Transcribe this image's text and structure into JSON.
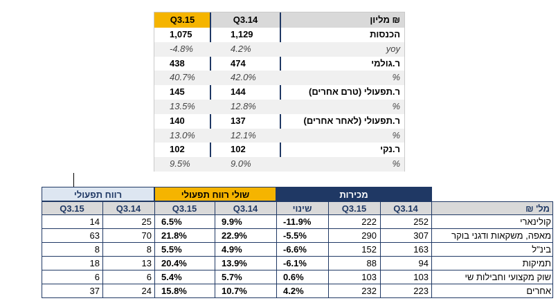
{
  "top_table": {
    "header": {
      "q315": "Q3.15",
      "q314": "Q3.14",
      "label": "מליון ₪"
    },
    "rows": [
      {
        "label": "הכנסות",
        "q314": "1,129",
        "q315": "1,075",
        "style": "bold"
      },
      {
        "label": "yoy",
        "q314": "4.2%",
        "q315": "-4.8%",
        "style": "pct"
      },
      {
        "label": "ר.גולמי",
        "q314": "474",
        "q315": "438",
        "style": "bold"
      },
      {
        "label": "%",
        "q314": "42.0%",
        "q315": "40.7%",
        "style": "pct"
      },
      {
        "label": "ר.תפעולי (טרם אחרים)",
        "q314": "144",
        "q315": "145",
        "style": "bold"
      },
      {
        "label": "%",
        "q314": "12.8%",
        "q315": "13.5%",
        "style": "pct"
      },
      {
        "label": "ר.תפעולי (לאחר אחרים)",
        "q314": "137",
        "q315": "140",
        "style": "bold"
      },
      {
        "label": "%",
        "q314": "12.1%",
        "q315": "13.0%",
        "style": "pct"
      },
      {
        "label": "ר.נקי",
        "q314": "102",
        "q315": "102",
        "style": "bold"
      },
      {
        "label": "%",
        "q314": "9.0%",
        "q315": "9.5%",
        "style": "pct"
      }
    ]
  },
  "bottom_table": {
    "groups": {
      "ruah": "רווח תפעולי",
      "shulei": "שולי רווח תפעולי",
      "mekhirot": "מכירות"
    },
    "header": {
      "ruah_q315": "Q3.15",
      "ruah_q314": "Q3.14",
      "shulei_q315": "Q3.15",
      "shulei_q314": "Q3.14",
      "shinui": "שינוי",
      "mek_q315": "Q3.15",
      "mek_q314": "Q3.14",
      "label": "מל' ₪"
    },
    "rows": [
      {
        "label": "קולינארי",
        "ruah_q315": "14",
        "ruah_q314": "25",
        "shulei_q315": "6.5%",
        "shulei_q314": "9.9%",
        "shinui": "-11.9%",
        "mek_q315": "222",
        "mek_q314": "252"
      },
      {
        "label": "מאפה, משקאות ודגני בוקר",
        "ruah_q315": "63",
        "ruah_q314": "70",
        "shulei_q315": "21.8%",
        "shulei_q314": "22.9%",
        "shinui": "-5.5%",
        "mek_q315": "290",
        "mek_q314": "307"
      },
      {
        "label": "בינ\"ל",
        "ruah_q315": "8",
        "ruah_q314": "8",
        "shulei_q315": "5.5%",
        "shulei_q314": "4.9%",
        "shinui": "-6.6%",
        "mek_q315": "152",
        "mek_q314": "163"
      },
      {
        "label": "תמיקות",
        "ruah_q315": "18",
        "ruah_q314": "13",
        "shulei_q315": "20.4%",
        "shulei_q314": "13.9%",
        "shinui": "-6.1%",
        "mek_q315": "88",
        "mek_q314": "94"
      },
      {
        "label": "שוק מקצועי וחבילות שי",
        "ruah_q315": "6",
        "ruah_q314": "6",
        "shulei_q315": "5.4%",
        "shulei_q314": "5.7%",
        "shinui": "0.6%",
        "mek_q315": "103",
        "mek_q314": "103"
      },
      {
        "label": "אחרים",
        "ruah_q315": "37",
        "ruah_q314": "24",
        "shulei_q315": "15.8%",
        "shulei_q314": "10.7%",
        "shinui": "4.2%",
        "mek_q315": "232",
        "mek_q314": "223"
      }
    ]
  },
  "colors": {
    "navy": "#1f3864",
    "gold": "#f5b400",
    "gray": "#d9d9d9",
    "light_blue": "#dde6f1"
  }
}
